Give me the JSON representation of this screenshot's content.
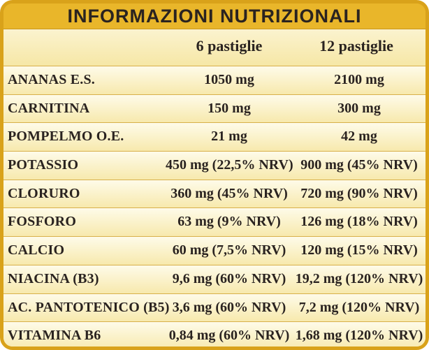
{
  "title": "INFORMAZIONI NUTRIZIONALI",
  "columns": [
    "6 pastiglie",
    "12 pastiglie"
  ],
  "rows": [
    {
      "name": "ANANAS E.S.",
      "v1": "1050 mg",
      "v2": "2100 mg"
    },
    {
      "name": "CARNITINA",
      "v1": "150 mg",
      "v2": "300 mg"
    },
    {
      "name": "POMPELMO O.E.",
      "v1": "21 mg",
      "v2": "42 mg"
    },
    {
      "name": "POTASSIO",
      "v1": "450 mg (22,5% NRV)",
      "v2": "900 mg (45% NRV)"
    },
    {
      "name": "CLORURO",
      "v1": "360 mg (45% NRV)",
      "v2": "720 mg (90% NRV)"
    },
    {
      "name": "FOSFORO",
      "v1": "63 mg (9% NRV)",
      "v2": "126 mg (18% NRV)"
    },
    {
      "name": "CALCIO",
      "v1": "60 mg (7,5% NRV)",
      "v2": "120 mg (15% NRV)"
    },
    {
      "name": "NIACINA (B3)",
      "v1": "9,6 mg (60% NRV)",
      "v2": "19,2 mg (120% NRV)"
    },
    {
      "name": "AC. PANTOTENICO (B5)",
      "v1": "3,6 mg (60% NRV)",
      "v2": "7,2 mg (120% NRV)"
    },
    {
      "name": "VITAMINA B6",
      "v1": "0,84 mg (60% NRV)",
      "v2": "1,68 mg (120% NRV)"
    }
  ]
}
